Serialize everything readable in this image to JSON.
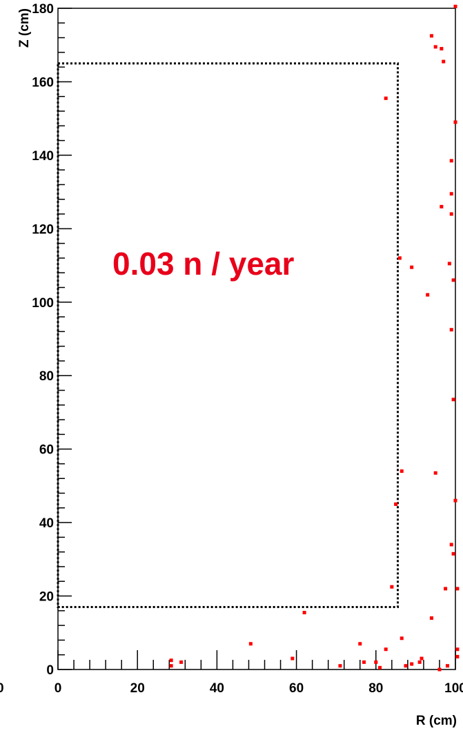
{
  "chart_data": {
    "type": "scatter",
    "title": "",
    "xlabel": "R (cm)",
    "ylabel": "Z (cm)",
    "xlim": [
      0,
      100
    ],
    "ylim": [
      0,
      180
    ],
    "x_ticks": [
      0,
      20,
      40,
      60,
      80,
      100
    ],
    "y_ticks": [
      0,
      20,
      40,
      60,
      80,
      100,
      120,
      140,
      160,
      180
    ],
    "x_tick_labels": [
      "0",
      "20",
      "40",
      "60",
      "80",
      "100"
    ],
    "y_tick_labels": [
      "0",
      "20",
      "40",
      "60",
      "80",
      "100",
      "120",
      "140",
      "160",
      "180"
    ],
    "left_edge_label": "0",
    "grid": false,
    "marker_color": "#ff0000",
    "annotation": {
      "text": "0.03 n / year",
      "color": "#e8001a"
    },
    "region_box": {
      "style": "dotted",
      "r_min": 0,
      "r_max": 85.5,
      "z_min": 17,
      "z_max": 165
    },
    "points": [
      {
        "x": 100,
        "y": 180.5
      },
      {
        "x": 94,
        "y": 172.5
      },
      {
        "x": 95,
        "y": 169.5
      },
      {
        "x": 96.5,
        "y": 169
      },
      {
        "x": 97,
        "y": 165.5
      },
      {
        "x": 82.5,
        "y": 155.5
      },
      {
        "x": 100,
        "y": 149
      },
      {
        "x": 99,
        "y": 138.5
      },
      {
        "x": 99,
        "y": 129.5
      },
      {
        "x": 96.5,
        "y": 126
      },
      {
        "x": 99,
        "y": 124
      },
      {
        "x": 86,
        "y": 112
      },
      {
        "x": 98.5,
        "y": 110.5
      },
      {
        "x": 89,
        "y": 109.5
      },
      {
        "x": 99.5,
        "y": 106
      },
      {
        "x": 93,
        "y": 102
      },
      {
        "x": 99,
        "y": 92.5
      },
      {
        "x": 99.5,
        "y": 73.5
      },
      {
        "x": 86.5,
        "y": 54
      },
      {
        "x": 95,
        "y": 53.5
      },
      {
        "x": 100,
        "y": 46
      },
      {
        "x": 85,
        "y": 45
      },
      {
        "x": 99,
        "y": 34
      },
      {
        "x": 99.5,
        "y": 31.5
      },
      {
        "x": 84,
        "y": 22.5
      },
      {
        "x": 97.5,
        "y": 22
      },
      {
        "x": 100.5,
        "y": 22
      },
      {
        "x": 62,
        "y": 15.5
      },
      {
        "x": 94,
        "y": 14
      },
      {
        "x": 86.5,
        "y": 8.5
      },
      {
        "x": 48.5,
        "y": 7
      },
      {
        "x": 76,
        "y": 7
      },
      {
        "x": 82.5,
        "y": 5.5
      },
      {
        "x": 100.5,
        "y": 5.5
      },
      {
        "x": 59,
        "y": 3
      },
      {
        "x": 91.5,
        "y": 3
      },
      {
        "x": 100.5,
        "y": 3.5
      },
      {
        "x": 28.5,
        "y": 2.5
      },
      {
        "x": 31,
        "y": 2
      },
      {
        "x": 77,
        "y": 2
      },
      {
        "x": 80,
        "y": 2
      },
      {
        "x": 91,
        "y": 2
      },
      {
        "x": 28.5,
        "y": 1
      },
      {
        "x": 71,
        "y": 1
      },
      {
        "x": 87.5,
        "y": 1
      },
      {
        "x": 89,
        "y": 1.5
      },
      {
        "x": 98,
        "y": 1
      },
      {
        "x": 81,
        "y": 0.5
      },
      {
        "x": 96,
        "y": 0
      }
    ]
  }
}
